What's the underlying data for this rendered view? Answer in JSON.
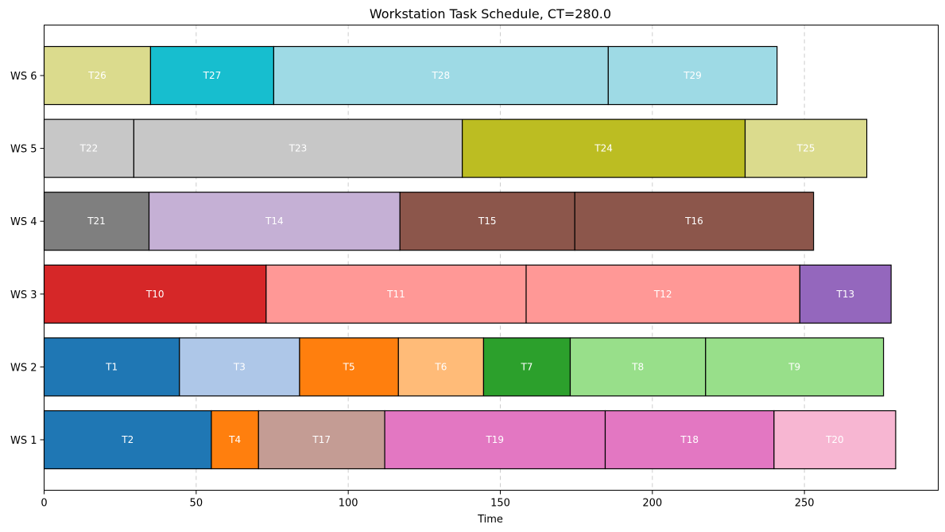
{
  "chart_data": {
    "type": "bar",
    "orientation": "horizontal-gantt",
    "title": "Workstation Task Schedule, CT=280.0",
    "xlabel": "Time",
    "ylabel": "",
    "xlim": [
      0,
      294
    ],
    "xticks": [
      0,
      50,
      100,
      150,
      200,
      250
    ],
    "grid": "x-dashed",
    "workstations": [
      {
        "label": "WS 1",
        "tasks": [
          {
            "name": "T2",
            "start": 0,
            "end": 55,
            "color": "#1f77b4"
          },
          {
            "name": "T4",
            "start": 55,
            "end": 70.5,
            "color": "#ff7f0e"
          },
          {
            "name": "T17",
            "start": 70.5,
            "end": 112,
            "color": "#c49c94"
          },
          {
            "name": "T19",
            "start": 112,
            "end": 184.5,
            "color": "#e377c2"
          },
          {
            "name": "T18",
            "start": 184.5,
            "end": 240,
            "color": "#e377c2"
          },
          {
            "name": "T20",
            "start": 240,
            "end": 280,
            "color": "#f7b6d2"
          }
        ]
      },
      {
        "label": "WS 2",
        "tasks": [
          {
            "name": "T1",
            "start": 0,
            "end": 44.5,
            "color": "#1f77b4"
          },
          {
            "name": "T3",
            "start": 44.5,
            "end": 84,
            "color": "#aec7e8"
          },
          {
            "name": "T5",
            "start": 84,
            "end": 116.5,
            "color": "#ff7f0e"
          },
          {
            "name": "T6",
            "start": 116.5,
            "end": 144.5,
            "color": "#ffbb78"
          },
          {
            "name": "T7",
            "start": 144.5,
            "end": 173,
            "color": "#2ca02c"
          },
          {
            "name": "T8",
            "start": 173,
            "end": 217.5,
            "color": "#98df8a"
          },
          {
            "name": "T9",
            "start": 217.5,
            "end": 276,
            "color": "#98df8a"
          }
        ]
      },
      {
        "label": "WS 3",
        "tasks": [
          {
            "name": "T10",
            "start": 0,
            "end": 73,
            "color": "#d62728"
          },
          {
            "name": "T11",
            "start": 73,
            "end": 158.5,
            "color": "#ff9896"
          },
          {
            "name": "T12",
            "start": 158.5,
            "end": 248.5,
            "color": "#ff9896"
          },
          {
            "name": "T13",
            "start": 248.5,
            "end": 278.5,
            "color": "#9467bd"
          }
        ]
      },
      {
        "label": "WS 4",
        "tasks": [
          {
            "name": "T21",
            "start": 0,
            "end": 34.5,
            "color": "#7f7f7f"
          },
          {
            "name": "T14",
            "start": 34.5,
            "end": 117,
            "color": "#c5b0d5"
          },
          {
            "name": "T15",
            "start": 117,
            "end": 174.5,
            "color": "#8c564b"
          },
          {
            "name": "T16",
            "start": 174.5,
            "end": 253,
            "color": "#8c564b"
          }
        ]
      },
      {
        "label": "WS 5",
        "tasks": [
          {
            "name": "T22",
            "start": 0,
            "end": 29.5,
            "color": "#c7c7c7"
          },
          {
            "name": "T23",
            "start": 29.5,
            "end": 137.5,
            "color": "#c7c7c7"
          },
          {
            "name": "T24",
            "start": 137.5,
            "end": 230.5,
            "color": "#bcbd22"
          },
          {
            "name": "T25",
            "start": 230.5,
            "end": 270.5,
            "color": "#dbdb8d"
          }
        ]
      },
      {
        "label": "WS 6",
        "tasks": [
          {
            "name": "T26",
            "start": 0,
            "end": 35,
            "color": "#dbdb8d"
          },
          {
            "name": "T27",
            "start": 35,
            "end": 75.5,
            "color": "#17becf"
          },
          {
            "name": "T28",
            "start": 75.5,
            "end": 185.5,
            "color": "#9edae5"
          },
          {
            "name": "T29",
            "start": 185.5,
            "end": 241,
            "color": "#9edae5"
          }
        ]
      }
    ]
  }
}
